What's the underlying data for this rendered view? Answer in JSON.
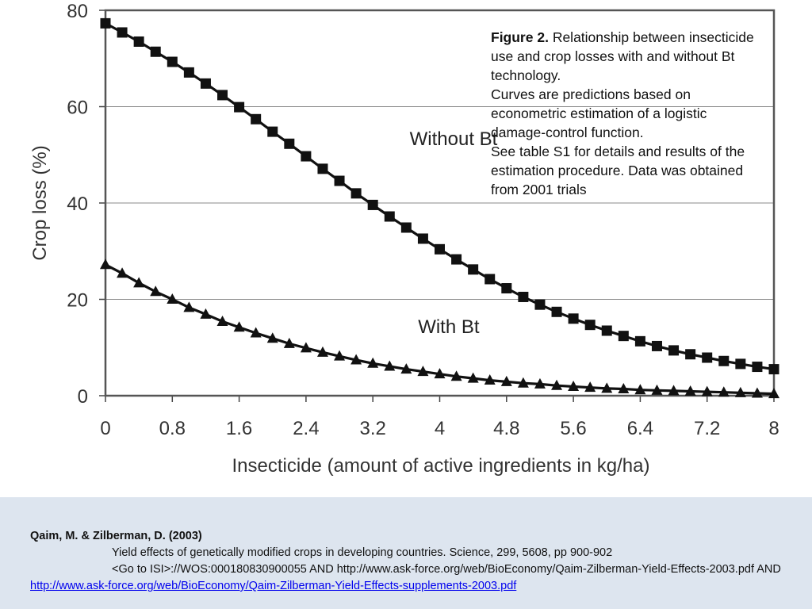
{
  "chart_data": {
    "type": "line",
    "xlabel": "Insecticide (amount of active ingredients in kg/ha)",
    "ylabel": "Crop loss (%)",
    "xlim": [
      0,
      8
    ],
    "ylim": [
      0,
      80
    ],
    "x_ticks": [
      "0",
      "0.8",
      "1.6",
      "2.4",
      "3.2",
      "4",
      "4.8",
      "5.6",
      "6.4",
      "7.2",
      "8"
    ],
    "y_ticks": [
      "0",
      "20",
      "40",
      "60",
      "80"
    ],
    "grid": "horizontal",
    "series": [
      {
        "name": "Without Bt",
        "marker": "square",
        "label": "Without Bt",
        "x": [
          0,
          0.2,
          0.4,
          0.6,
          0.8,
          1.0,
          1.2,
          1.4,
          1.6,
          1.8,
          2.0,
          2.2,
          2.4,
          2.6,
          2.8,
          3.0,
          3.2,
          3.4,
          3.6,
          3.8,
          4.0,
          4.2,
          4.4,
          4.6,
          4.8,
          5.0,
          5.2,
          5.4,
          5.6,
          5.8,
          6.0,
          6.2,
          6.4,
          6.6,
          6.8,
          7.0,
          7.2,
          7.4,
          7.6,
          7.8,
          8.0
        ],
        "values": [
          77.3,
          75.4,
          73.5,
          71.4,
          69.3,
          67.1,
          64.8,
          62.4,
          59.9,
          57.4,
          54.8,
          52.3,
          49.7,
          47.1,
          44.6,
          42.0,
          39.6,
          37.2,
          34.9,
          32.6,
          30.4,
          28.3,
          26.2,
          24.2,
          22.3,
          20.5,
          18.9,
          17.4,
          16.0,
          14.7,
          13.5,
          12.4,
          11.3,
          10.3,
          9.4,
          8.6,
          7.9,
          7.2,
          6.6,
          6.0,
          5.5
        ],
        "label_at": [
          4.4,
          52
        ]
      },
      {
        "name": "With Bt",
        "marker": "triangle",
        "label": "With Bt",
        "x": [
          0,
          0.2,
          0.4,
          0.6,
          0.8,
          1.0,
          1.2,
          1.4,
          1.6,
          1.8,
          2.0,
          2.2,
          2.4,
          2.6,
          2.8,
          3.0,
          3.2,
          3.4,
          3.6,
          3.8,
          4.0,
          4.2,
          4.4,
          4.6,
          4.8,
          5.0,
          5.2,
          5.4,
          5.6,
          5.8,
          6.0,
          6.2,
          6.4,
          6.6,
          6.8,
          7.0,
          7.2,
          7.4,
          7.6,
          7.8,
          8.0
        ],
        "values": [
          27.2,
          25.4,
          23.4,
          21.6,
          20.0,
          18.3,
          16.9,
          15.4,
          14.2,
          13.0,
          11.9,
          10.8,
          9.9,
          9.0,
          8.2,
          7.4,
          6.7,
          6.1,
          5.5,
          5.0,
          4.5,
          4.0,
          3.6,
          3.2,
          2.9,
          2.6,
          2.4,
          2.1,
          1.9,
          1.7,
          1.5,
          1.4,
          1.2,
          1.1,
          1.0,
          0.9,
          0.8,
          0.7,
          0.6,
          0.5,
          0.4
        ],
        "label_at": [
          4.5,
          13
        ]
      }
    ]
  },
  "caption": {
    "figure_label": "Figure 2.",
    "line1": "Relationship between insecticide use and crop losses with and without Bt technology.",
    "line2": "Curves are predictions based on econometric estimation of a logistic damage-control function.",
    "line3": "See table S1 for details and results of the estimation procedure. Data was obtained from 2001 trials"
  },
  "reference": {
    "authors": "Qaim, M. & Zilberman, D. (2003)",
    "citation": "Yield effects of genetically modified crops in developing countries. Science, 299, 5608, pp  900-902",
    "isi_line": "<Go to ISI>://WOS:000180830900055 AND http://www.ask-force.org/web/BioEconomy/Qaim-Zilberman-Yield-Effects-2003.pdf AND",
    "link": "http://www.ask-force.org/web/BioEconomy/Qaim-Zilberman-Yield-Effects-supplements-2003.pdf"
  }
}
